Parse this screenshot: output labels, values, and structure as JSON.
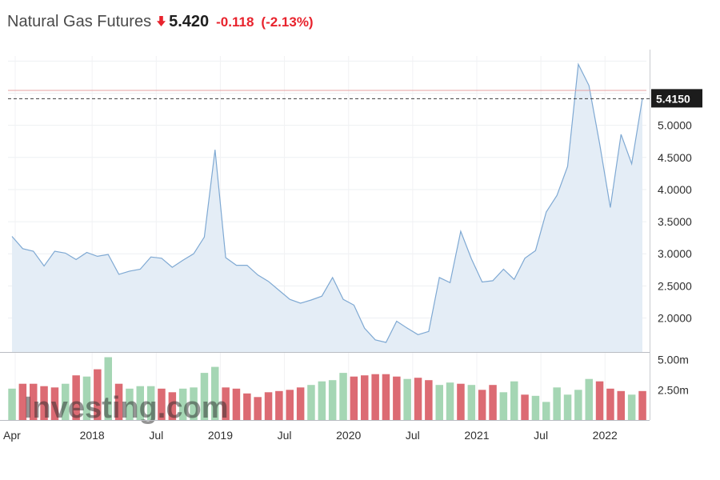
{
  "header": {
    "title": "Natural Gas Futures",
    "direction_icon": "arrow-down-icon",
    "last": "5.420",
    "change": "-0.118",
    "change_pct": "(-2.13%)"
  },
  "watermark": "Investing.com",
  "colors": {
    "line": "#7fa9d3",
    "area": "#e4edf6",
    "up": "#a5d6b4",
    "down": "#dc6b73",
    "change": "#e8232d",
    "price_line": "#e6a1a1"
  },
  "chart_data": {
    "type": "line",
    "title": "Natural Gas Futures",
    "x_tick_labels": [
      "Apr",
      "2018",
      "Jul",
      "2019",
      "Jul",
      "2020",
      "Jul",
      "2021",
      "Jul",
      "2022"
    ],
    "y_tick_labels": [
      "2.0000",
      "2.5000",
      "3.0000",
      "3.5000",
      "4.0000",
      "4.5000",
      "5.0000"
    ],
    "y_range": [
      1.47,
      6.08
    ],
    "current_value_label": "5.4150",
    "current_value": 5.415,
    "reference_line_value": 5.545,
    "series": [
      {
        "values": [
          3.27,
          3.08,
          3.04,
          2.81,
          3.04,
          3.01,
          2.91,
          3.02,
          2.96,
          2.99,
          2.68,
          2.73,
          2.76,
          2.95,
          2.93,
          2.79,
          2.9,
          3.0,
          3.26,
          4.62,
          2.94,
          2.82,
          2.82,
          2.67,
          2.57,
          2.43,
          2.29,
          2.23,
          2.28,
          2.34,
          2.63,
          2.29,
          2.2,
          1.84,
          1.66,
          1.62,
          1.95,
          1.84,
          1.74,
          1.79,
          2.63,
          2.55,
          3.35,
          2.92,
          2.56,
          2.58,
          2.76,
          2.6,
          2.93,
          3.05,
          3.65,
          3.91,
          4.36,
          5.95,
          5.62,
          4.71,
          3.72,
          4.86,
          4.4,
          5.42
        ]
      }
    ],
    "volume": {
      "y_tick_labels": [
        "5.00m",
        "2.50m"
      ],
      "y_range": [
        0,
        5.5
      ],
      "unit": "m",
      "values": [
        2.6,
        3.0,
        3.0,
        2.8,
        2.7,
        3.0,
        3.7,
        3.6,
        4.2,
        5.2,
        3.0,
        2.6,
        2.8,
        2.8,
        2.6,
        2.3,
        2.6,
        2.7,
        3.9,
        4.4,
        2.7,
        2.6,
        2.2,
        1.9,
        2.3,
        2.4,
        2.5,
        2.7,
        2.9,
        3.2,
        3.3,
        3.9,
        3.6,
        3.7,
        3.8,
        3.8,
        3.6,
        3.4,
        3.5,
        3.3,
        2.9,
        3.1,
        3.0,
        2.9,
        2.5,
        2.9,
        2.3,
        3.2,
        2.1,
        2.0,
        1.5,
        2.7,
        2.1,
        2.5,
        3.4,
        3.2,
        2.6,
        2.4,
        2.1,
        2.4
      ],
      "directions": [
        "up",
        "down",
        "down",
        "down",
        "down",
        "up",
        "down",
        "up",
        "down",
        "up",
        "down",
        "up",
        "up",
        "up",
        "down",
        "down",
        "up",
        "up",
        "up",
        "up",
        "down",
        "down",
        "down",
        "down",
        "down",
        "down",
        "down",
        "down",
        "up",
        "up",
        "up",
        "up",
        "down",
        "down",
        "down",
        "down",
        "down",
        "up",
        "down",
        "down",
        "up",
        "up",
        "down",
        "up",
        "down",
        "down",
        "up",
        "up",
        "down",
        "up",
        "up",
        "up",
        "up",
        "up",
        "up",
        "down",
        "down",
        "down",
        "up",
        "down"
      ]
    }
  }
}
